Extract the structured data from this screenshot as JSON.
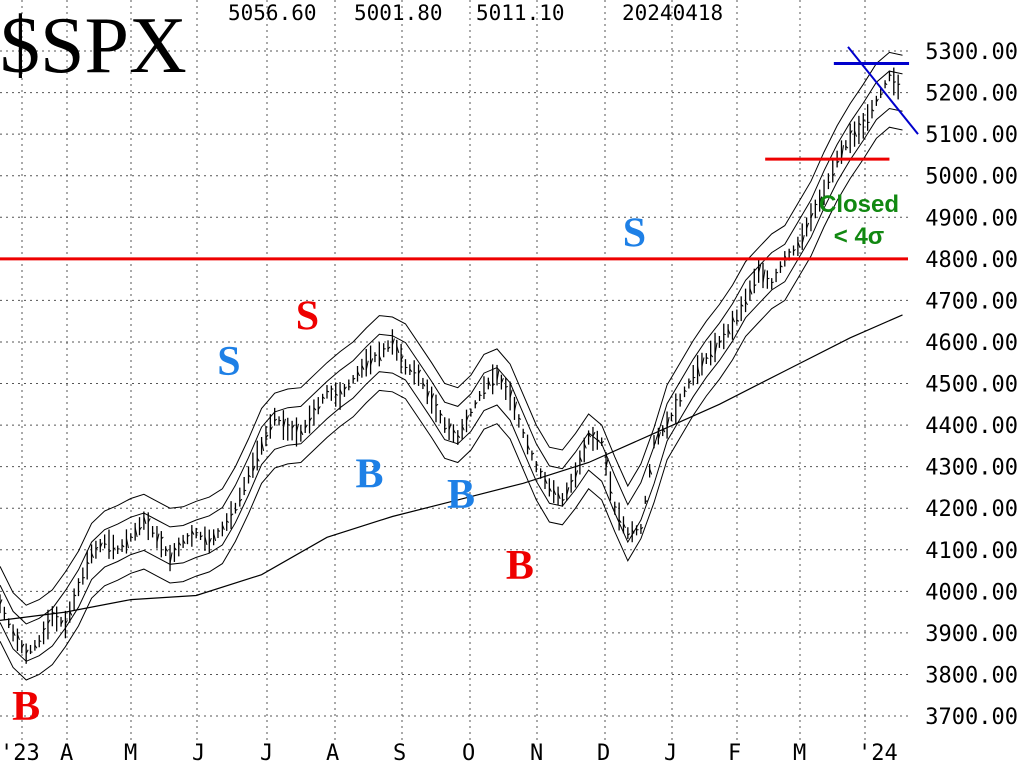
{
  "chart_data": {
    "type": "line",
    "title": "$SPX",
    "header": {
      "open": "5056.60",
      "low": "5001.80",
      "close": "5011.10",
      "date": "20240418"
    },
    "y_tick_labels": [
      "5300.00",
      "5200.00",
      "5100.00",
      "5000.00",
      "4900.00",
      "4800.00",
      "4700.00",
      "4600.00",
      "4500.00",
      "4400.00",
      "4300.00",
      "4200.00",
      "4100.00",
      "4000.00",
      "3900.00",
      "3800.00",
      "3700.00"
    ],
    "x_tick_labels": [
      "'23",
      "A",
      "M",
      "J",
      "J",
      "A",
      "S",
      "O",
      "N",
      "D",
      "J",
      "F",
      "M",
      "'24"
    ],
    "ylim": [
      3650,
      5360
    ],
    "grid": true,
    "series": [
      {
        "kind": "price",
        "x": [
          0,
          4,
          8,
          12,
          16,
          20,
          24,
          28,
          32,
          36,
          40,
          44,
          48,
          52,
          56,
          60,
          64,
          68,
          72,
          76,
          80,
          84,
          88,
          92,
          96,
          100,
          104,
          108,
          112,
          116,
          120,
          124,
          128,
          132,
          136,
          140,
          144,
          148,
          152,
          156,
          160,
          164,
          168,
          172,
          176,
          180,
          184,
          188,
          192,
          196,
          200,
          204,
          208,
          212,
          216,
          220,
          224,
          228,
          232,
          236,
          240,
          244,
          248,
          252,
          256,
          260,
          264,
          268,
          272,
          276
        ],
        "values": [
          3970,
          3900,
          3850,
          3880,
          3940,
          3920,
          4010,
          4090,
          4120,
          4100,
          4130,
          4170,
          4130,
          4080,
          4120,
          4140,
          4120,
          4150,
          4200,
          4280,
          4350,
          4420,
          4390,
          4380,
          4430,
          4480,
          4470,
          4510,
          4550,
          4570,
          4600,
          4540,
          4520,
          4460,
          4400,
          4370,
          4430,
          4490,
          4520,
          4470,
          4380,
          4300,
          4250,
          4220,
          4280,
          4370,
          4360,
          4200,
          4140,
          4150,
          4360,
          4400,
          4460,
          4520,
          4560,
          4600,
          4640,
          4700,
          4770,
          4740,
          4800,
          4830,
          4900,
          4960,
          5040,
          5090,
          5120,
          5180,
          5240,
          5200
        ]
      },
      {
        "kind": "moving-average",
        "x": [
          0,
          20,
          40,
          60,
          80,
          100,
          120,
          140,
          160,
          180,
          200,
          220,
          240,
          260,
          276
        ],
        "values": [
          3930,
          3950,
          3980,
          3990,
          4040,
          4130,
          4180,
          4220,
          4260,
          4310,
          4380,
          4450,
          4530,
          4610,
          4665
        ]
      }
    ],
    "horizontal_lines": [
      {
        "y": 4800,
        "color": "#ee0000"
      },
      {
        "y": 5040,
        "x_start": 234,
        "x_end": 272,
        "color": "#ee0000"
      },
      {
        "y": 5270,
        "x_start": 255,
        "x_end": 278,
        "color": "#0000cc"
      }
    ],
    "signals": [
      {
        "label": "B",
        "color": "#ee0000",
        "x": 8,
        "y": 3690
      },
      {
        "label": "S",
        "color": "#1e80e6",
        "x": 70,
        "y": 4520
      },
      {
        "label": "S",
        "color": "#ee0000",
        "x": 94,
        "y": 4630
      },
      {
        "label": "B",
        "color": "#1e80e6",
        "x": 113,
        "y": 4250
      },
      {
        "label": "B",
        "color": "#1e80e6",
        "x": 141,
        "y": 4200
      },
      {
        "label": "B",
        "color": "#ee0000",
        "x": 159,
        "y": 4030
      },
      {
        "label": "S",
        "color": "#1e80e6",
        "x": 194,
        "y": 4830
      }
    ],
    "annotation": [
      "Closed",
      "< 4σ"
    ],
    "colors": {
      "price": "#000000",
      "grid": "#555555",
      "annotation": "#118811",
      "blue_line": "#0000cc"
    }
  }
}
